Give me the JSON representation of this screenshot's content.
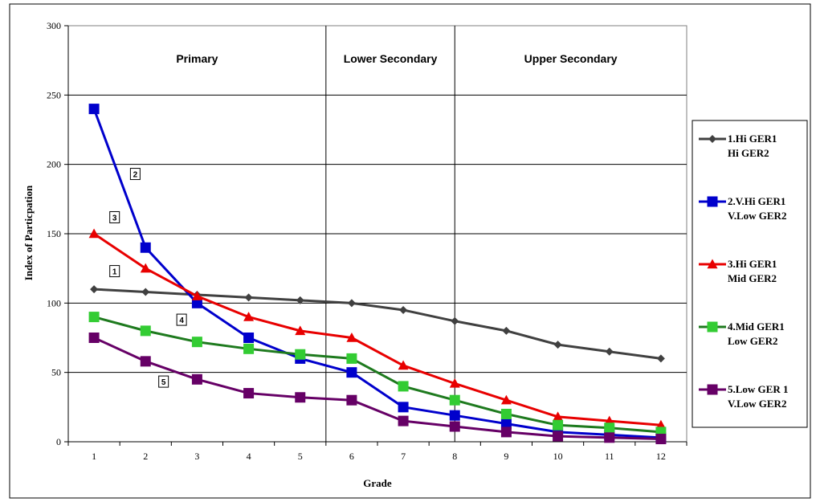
{
  "chart_data": {
    "type": "line",
    "xlabel": "Grade",
    "ylabel": "Index of Particpation",
    "x": [
      1,
      2,
      3,
      4,
      5,
      6,
      7,
      8,
      9,
      10,
      11,
      12
    ],
    "ylim": [
      0,
      300
    ],
    "yticks": [
      "0",
      "50",
      "100",
      "150",
      "200",
      "250",
      "300"
    ],
    "xticks": [
      "1",
      "2",
      "3",
      "4",
      "5",
      "6",
      "7",
      "8",
      "9",
      "10",
      "11",
      "12"
    ],
    "grid": "horizontal",
    "legend_position": "right",
    "regions": [
      {
        "label": "Primary",
        "from": 0.5,
        "to": 5.5
      },
      {
        "label": "Lower Secondary",
        "from": 5.5,
        "to": 8
      },
      {
        "label": "Upper Secondary",
        "from": 8,
        "to": 12.5
      }
    ],
    "series": [
      {
        "name": "1.Hi GER1 Hi GER2",
        "legend_lines": [
          "1.Hi GER1",
          "Hi GER2"
        ],
        "tag": "1",
        "color": "#404040",
        "marker": "diamond",
        "values": [
          110,
          108,
          106,
          104,
          102,
          100,
          95,
          87,
          80,
          70,
          65,
          60
        ]
      },
      {
        "name": "2.V.Hi GER1 V.Low GER2",
        "legend_lines": [
          "2.V.Hi GER1",
          "V.Low GER2"
        ],
        "tag": "2",
        "color": "#0000CC",
        "marker": "square",
        "values": [
          240,
          140,
          100,
          75,
          60,
          50,
          25,
          19,
          13,
          7,
          5,
          3
        ]
      },
      {
        "name": "3.Hi GER1 Mid GER2",
        "legend_lines": [
          "3.Hi GER1",
          "Mid GER2"
        ],
        "tag": "3",
        "color": "#E80000",
        "marker": "triangle",
        "values": [
          150,
          125,
          105,
          90,
          80,
          75,
          55,
          42,
          30,
          18,
          15,
          12
        ]
      },
      {
        "name": "4.Mid GER1 Low GER2",
        "legend_lines": [
          "4.Mid GER1",
          "Low GER2"
        ],
        "tag": "4",
        "color": "#1E7A1E",
        "marker_color": "#33CC33",
        "marker": "square",
        "values": [
          90,
          80,
          72,
          67,
          63,
          60,
          40,
          30,
          20,
          12,
          10,
          7
        ]
      },
      {
        "name": "5.Low GER 1 V.Low GER2",
        "legend_lines": [
          "5.Low GER 1",
          "V.Low GER2"
        ],
        "tag": "5",
        "color": "#660066",
        "marker": "square",
        "values": [
          75,
          58,
          45,
          35,
          32,
          30,
          15,
          11,
          7,
          4,
          3,
          2
        ]
      }
    ]
  }
}
